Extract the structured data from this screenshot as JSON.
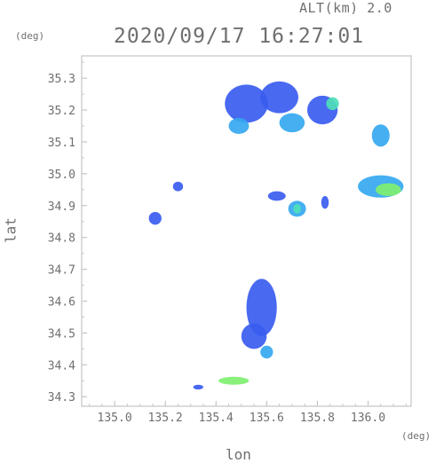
{
  "header": {
    "altitude_label": "ALT(km) 2.0",
    "timestamp": "2020/09/17 16:27:01",
    "y_unit": "(deg)",
    "x_unit": "(deg)"
  },
  "chart_data": {
    "type": "heatmap",
    "title": "2020/09/17 16:27:01",
    "xlabel": "lon",
    "ylabel": "lat",
    "xlim": [
      134.87,
      136.17
    ],
    "ylim": [
      34.27,
      35.37
    ],
    "x_ticks": [
      "135.0",
      "135.2",
      "135.4",
      "135.6",
      "135.8",
      "136.0"
    ],
    "y_ticks": [
      "34.3",
      "34.4",
      "34.5",
      "34.6",
      "34.7",
      "34.8",
      "34.9",
      "35.0",
      "35.1",
      "35.2",
      "35.3"
    ],
    "grid": false,
    "colors": {
      "weak": "#3a5cf0",
      "moderate": "#35a8f0",
      "strong": "#4ee0b8",
      "heavy": "#7ff070"
    },
    "echoes": [
      {
        "lon": 135.52,
        "lat": 35.22,
        "lon_span": 0.17,
        "lat_span": 0.12,
        "level": "weak"
      },
      {
        "lon": 135.65,
        "lat": 35.24,
        "lon_span": 0.15,
        "lat_span": 0.1,
        "level": "weak"
      },
      {
        "lon": 135.82,
        "lat": 35.2,
        "lon_span": 0.12,
        "lat_span": 0.09,
        "level": "weak"
      },
      {
        "lon": 135.86,
        "lat": 35.22,
        "lon_span": 0.05,
        "lat_span": 0.04,
        "level": "strong"
      },
      {
        "lon": 135.49,
        "lat": 35.15,
        "lon_span": 0.08,
        "lat_span": 0.05,
        "level": "moderate"
      },
      {
        "lon": 135.7,
        "lat": 35.16,
        "lon_span": 0.1,
        "lat_span": 0.06,
        "level": "moderate"
      },
      {
        "lon": 136.05,
        "lat": 35.12,
        "lon_span": 0.07,
        "lat_span": 0.07,
        "level": "moderate"
      },
      {
        "lon": 136.05,
        "lat": 34.96,
        "lon_span": 0.18,
        "lat_span": 0.07,
        "level": "moderate"
      },
      {
        "lon": 136.08,
        "lat": 34.95,
        "lon_span": 0.1,
        "lat_span": 0.04,
        "level": "heavy"
      },
      {
        "lon": 135.64,
        "lat": 34.93,
        "lon_span": 0.07,
        "lat_span": 0.03,
        "level": "weak"
      },
      {
        "lon": 135.72,
        "lat": 34.89,
        "lon_span": 0.07,
        "lat_span": 0.05,
        "level": "moderate"
      },
      {
        "lon": 135.72,
        "lat": 34.89,
        "lon_span": 0.03,
        "lat_span": 0.03,
        "level": "strong"
      },
      {
        "lon": 135.83,
        "lat": 34.91,
        "lon_span": 0.03,
        "lat_span": 0.04,
        "level": "weak"
      },
      {
        "lon": 135.16,
        "lat": 34.86,
        "lon_span": 0.05,
        "lat_span": 0.04,
        "level": "weak"
      },
      {
        "lon": 135.25,
        "lat": 34.96,
        "lon_span": 0.04,
        "lat_span": 0.03,
        "level": "weak"
      },
      {
        "lon": 135.58,
        "lat": 34.58,
        "lon_span": 0.12,
        "lat_span": 0.18,
        "level": "weak"
      },
      {
        "lon": 135.55,
        "lat": 34.49,
        "lon_span": 0.1,
        "lat_span": 0.08,
        "level": "weak"
      },
      {
        "lon": 135.6,
        "lat": 34.44,
        "lon_span": 0.05,
        "lat_span": 0.04,
        "level": "moderate"
      },
      {
        "lon": 135.47,
        "lat": 34.35,
        "lon_span": 0.12,
        "lat_span": 0.025,
        "level": "heavy"
      },
      {
        "lon": 135.33,
        "lat": 34.33,
        "lon_span": 0.04,
        "lat_span": 0.015,
        "level": "weak"
      }
    ]
  }
}
